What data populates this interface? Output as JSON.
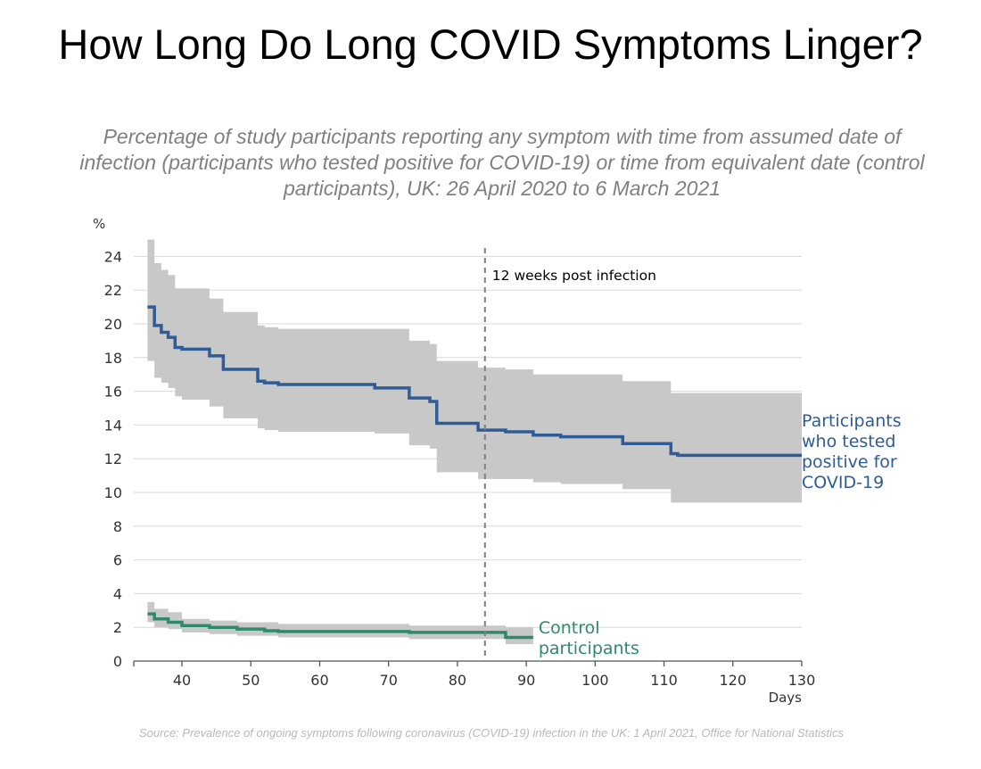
{
  "title": "How Long Do Long COVID Symptoms Linger?",
  "subtitle": "Percentage of study participants reporting any symptom with time from assumed date of infection (participants who tested positive for COVID-19) or time from equivalent date (control participants), UK: 26 April 2020 to 6 March 2021",
  "source": "Source: Prevalence of ongoing symptoms following coronavirus (COVID-19) infection in the UK: 1 April 2021, Office for National Statistics",
  "chart_data": {
    "type": "line",
    "ylabel": "%",
    "xlabel": "Days",
    "xlim": [
      33,
      130
    ],
    "ylim": [
      0,
      25
    ],
    "x_ticks": [
      40,
      50,
      60,
      70,
      80,
      90,
      100,
      110,
      120,
      130
    ],
    "y_ticks": [
      0,
      2,
      4,
      6,
      8,
      10,
      12,
      14,
      16,
      18,
      20,
      22,
      24
    ],
    "grid": true,
    "annotation": {
      "x": 84,
      "label": "12 weeks post infection"
    },
    "colors": {
      "positive": "#2f5c96",
      "control": "#2e8a6a",
      "band": "#c8c8c8",
      "grid": "#d9d9d9"
    },
    "series": [
      {
        "name": "Participants who tested positive for COVID-19",
        "label_lines": [
          "Participants",
          "who tested",
          "positive for",
          "COVID-19"
        ],
        "steps": [
          [
            35,
            21.0,
            25.0,
            17.8
          ],
          [
            36,
            19.9,
            23.6,
            16.8
          ],
          [
            37,
            19.5,
            23.2,
            16.5
          ],
          [
            38,
            19.2,
            22.9,
            16.2
          ],
          [
            39,
            18.6,
            22.1,
            15.7
          ],
          [
            40,
            18.5,
            22.1,
            15.5
          ],
          [
            44,
            18.1,
            21.5,
            15.1
          ],
          [
            46,
            17.3,
            20.7,
            14.4
          ],
          [
            51,
            16.6,
            19.9,
            13.8
          ],
          [
            52,
            16.5,
            19.8,
            13.7
          ],
          [
            54,
            16.4,
            19.7,
            13.6
          ],
          [
            68,
            16.2,
            19.7,
            13.5
          ],
          [
            73,
            15.6,
            19.0,
            12.8
          ],
          [
            76,
            15.4,
            18.8,
            12.6
          ],
          [
            77,
            14.1,
            17.8,
            11.2
          ],
          [
            83,
            13.7,
            17.4,
            10.8
          ],
          [
            87,
            13.6,
            17.3,
            10.8
          ],
          [
            91,
            13.4,
            17.0,
            10.6
          ],
          [
            95,
            13.3,
            17.0,
            10.5
          ],
          [
            104,
            12.9,
            16.6,
            10.2
          ],
          [
            111,
            12.3,
            15.9,
            9.4
          ],
          [
            112,
            12.2,
            15.9,
            9.4
          ]
        ],
        "end_x": 130
      },
      {
        "name": "Control participants",
        "label_lines": [
          "Control",
          "participants"
        ],
        "steps": [
          [
            35,
            2.8,
            3.5,
            2.3
          ],
          [
            36,
            2.5,
            3.1,
            2.0
          ],
          [
            38,
            2.3,
            2.9,
            1.9
          ],
          [
            40,
            2.1,
            2.5,
            1.7
          ],
          [
            44,
            2.0,
            2.4,
            1.6
          ],
          [
            48,
            1.9,
            2.3,
            1.5
          ],
          [
            52,
            1.8,
            2.3,
            1.5
          ],
          [
            54,
            1.75,
            2.2,
            1.4
          ],
          [
            73,
            1.7,
            2.1,
            1.3
          ],
          [
            87,
            1.4,
            2.0,
            1.0
          ]
        ],
        "end_x": 91
      }
    ]
  }
}
